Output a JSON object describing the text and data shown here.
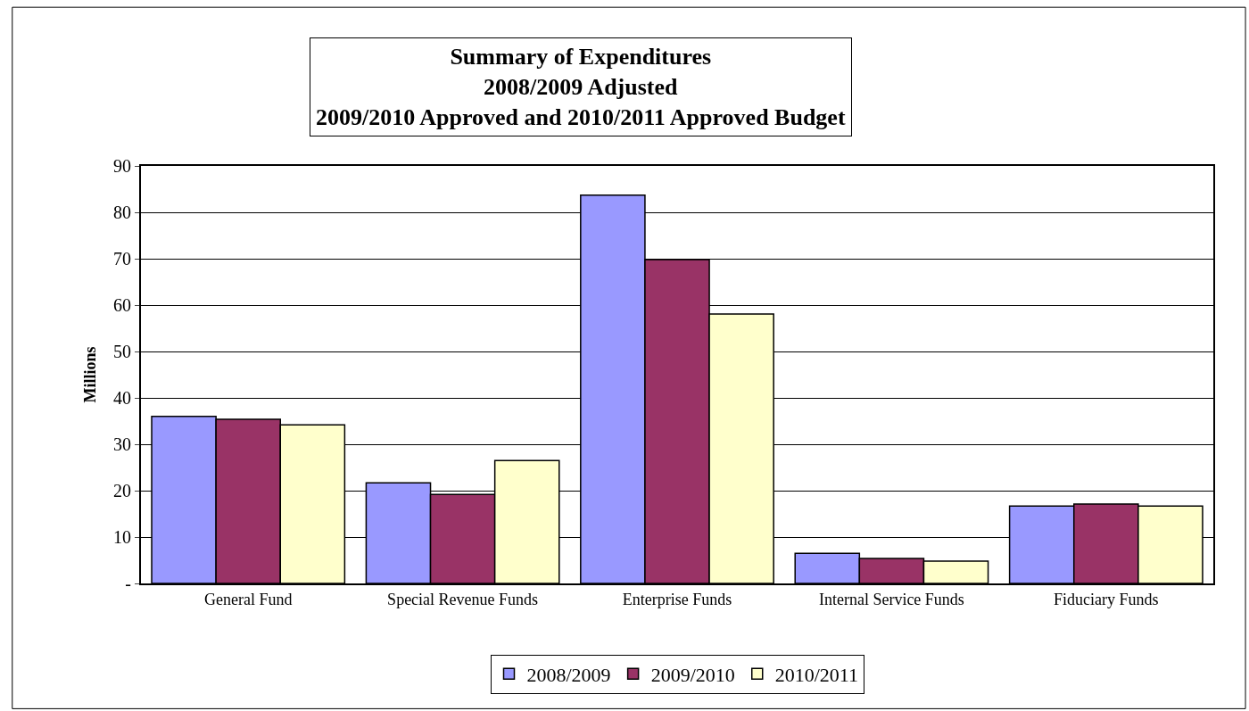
{
  "chart_data": {
    "type": "bar",
    "title": "Summary of Expenditures\n2008/2009 Adjusted\n2009/2010 Approved and 2010/2011 Approved Budget",
    "ylabel": "Millions",
    "categories": [
      "General Fund",
      "Special Revenue Funds",
      "Enterprise Funds",
      "Internal Service Funds",
      "Fiduciary Funds"
    ],
    "series": [
      {
        "name": "2008/2009",
        "color": "#9999ff",
        "values": [
          36.0,
          21.7,
          83.7,
          6.5,
          16.7
        ]
      },
      {
        "name": "2009/2010",
        "color": "#993366",
        "values": [
          35.4,
          19.2,
          69.8,
          5.4,
          17.1
        ]
      },
      {
        "name": "2010/2011",
        "color": "#ffffcc",
        "values": [
          34.2,
          26.5,
          58.1,
          4.8,
          16.7
        ]
      }
    ],
    "ylim": [
      0,
      90
    ],
    "yticks": [
      {
        "value": 0,
        "label": "-"
      },
      10,
      20,
      30,
      40,
      50,
      60,
      70,
      80,
      90
    ],
    "grid": "y",
    "legend": "bottom"
  }
}
